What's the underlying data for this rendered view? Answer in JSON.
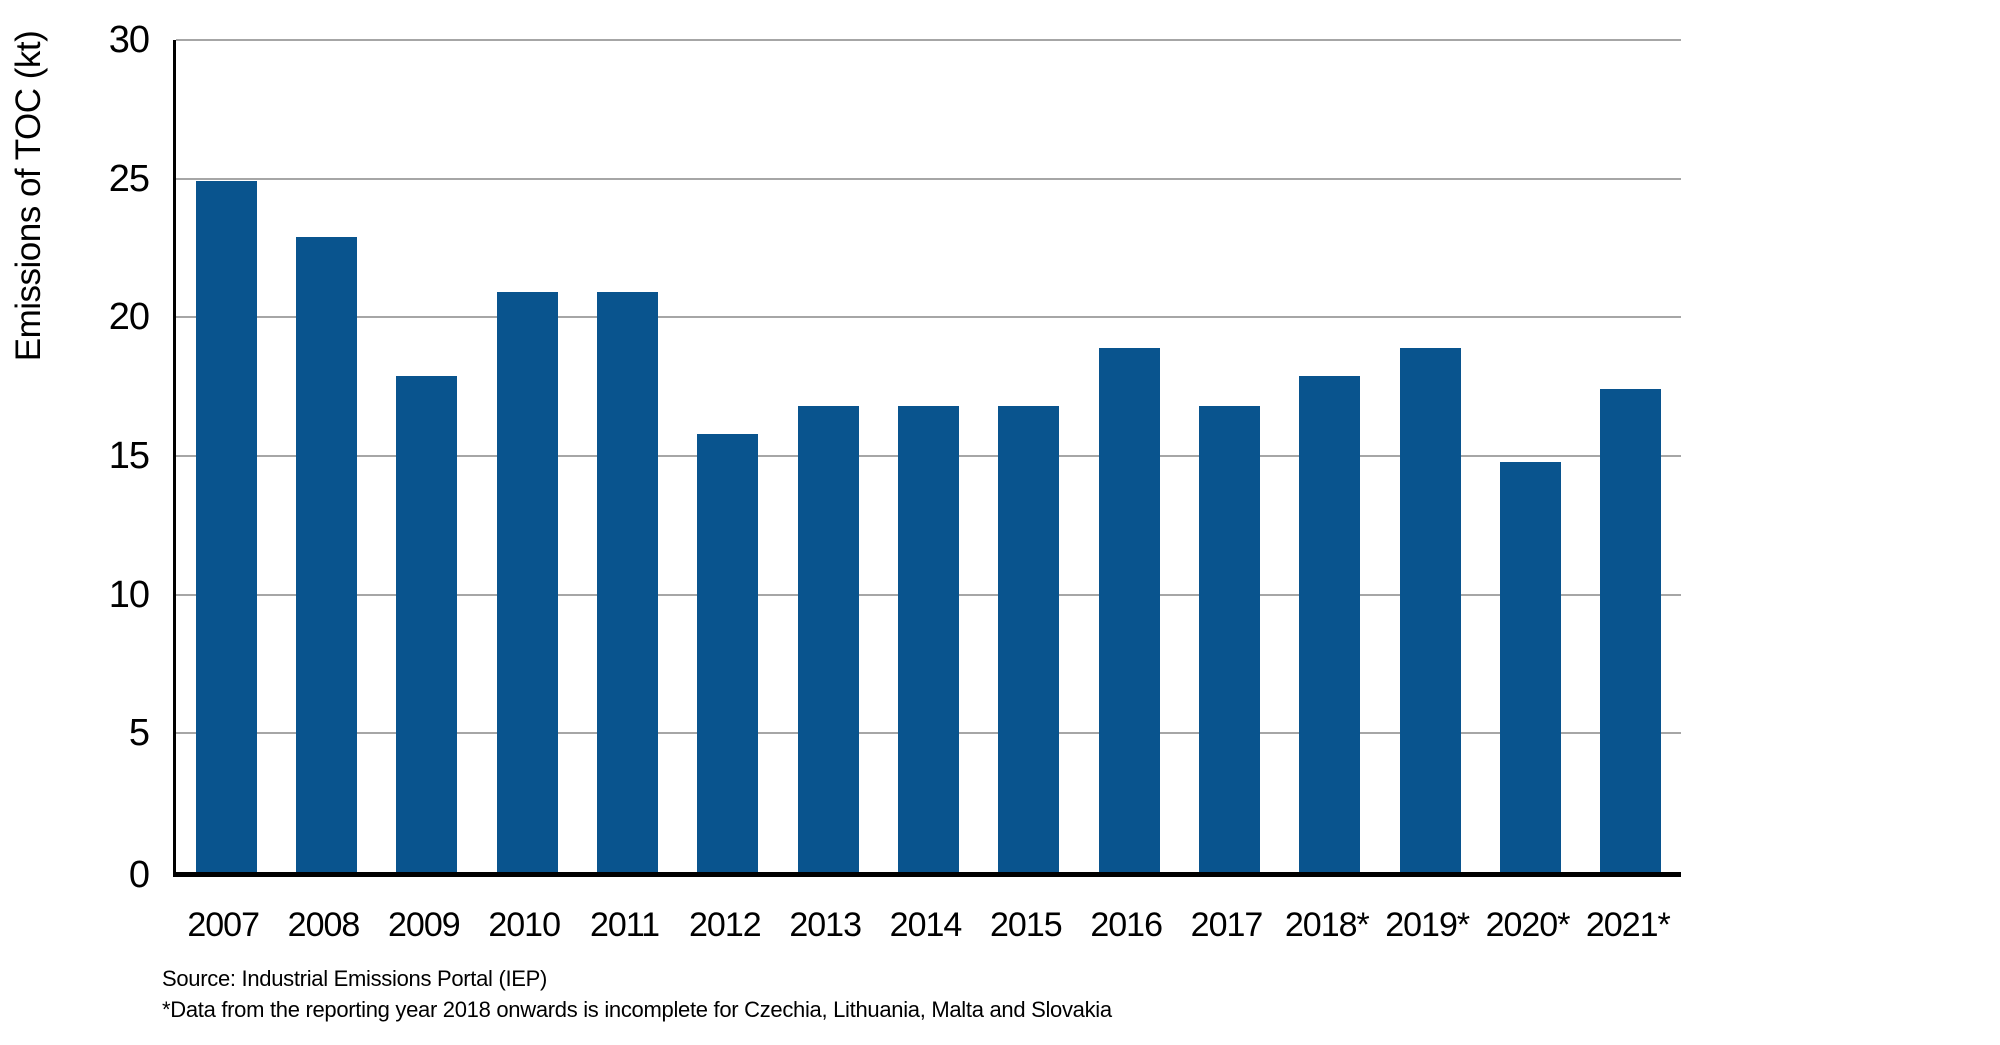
{
  "chart_data": {
    "type": "bar",
    "ylabel": "Emissions of TOC (kt)",
    "xlabel": "",
    "ylim": [
      0,
      30
    ],
    "yticks": [
      0,
      5,
      10,
      15,
      20,
      25,
      30
    ],
    "categories": [
      "2007",
      "2008",
      "2009",
      "2010",
      "2011",
      "2012",
      "2013",
      "2014",
      "2015",
      "2016",
      "2017",
      "2018*",
      "2019*",
      "2020*",
      "2021*"
    ],
    "values": [
      24.9,
      22.9,
      17.9,
      20.9,
      20.9,
      15.8,
      16.8,
      16.8,
      16.8,
      18.9,
      16.8,
      17.9,
      18.9,
      14.8,
      17.4
    ],
    "grid": true,
    "legend_position": "none",
    "colors": {
      "bar": "#09548E",
      "gridline": "#A6A6A6",
      "axis": "#000000",
      "text": "#000000",
      "background": "#FFFFFF"
    },
    "source_note": "Source: Industrial Emissions Portal (IEP)",
    "footnote": "*Data from the reporting year 2018 onwards is incomplete for Czechia, Lithuania, Malta and Slovakia"
  }
}
